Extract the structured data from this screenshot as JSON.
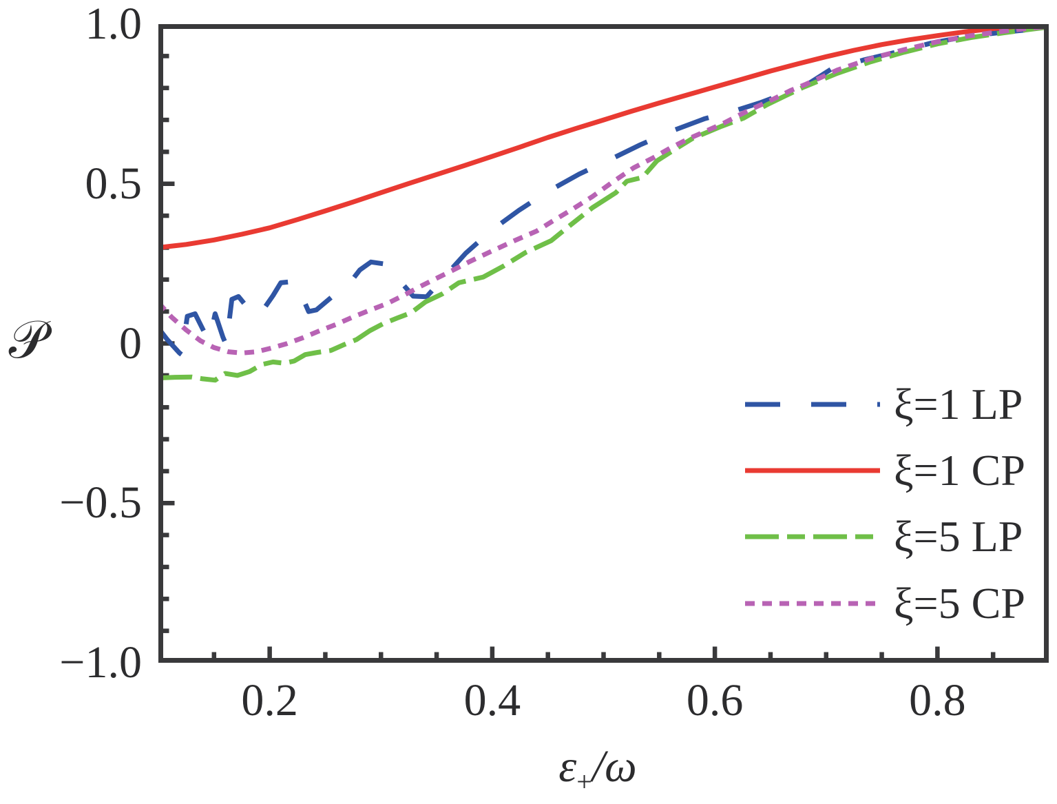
{
  "figure": {
    "background": "#ffffff",
    "axis_color": "#39393b",
    "text_color": "#2c2c2e",
    "ylabel": "𝒫",
    "xlabel": {
      "epsilon": "ε",
      "plus": "+",
      "slash_omega": "/ω"
    }
  },
  "chart_data": {
    "type": "line",
    "title": "",
    "xlabel": "ε₊/ω",
    "ylabel": "𝒫",
    "xlim": [
      0.1,
      0.9
    ],
    "ylim": [
      -1.0,
      1.0
    ],
    "grid": false,
    "legend_position": "lower right",
    "x_major_ticks": [
      0.2,
      0.4,
      0.6,
      0.8
    ],
    "x_minor_step": 0.05,
    "y_major_ticks": [
      -1.0,
      -0.5,
      0,
      0.5,
      1.0
    ],
    "y_minor_step": 0.1,
    "x_tick_labels": [
      {
        "v": 0.2,
        "t": "0.2"
      },
      {
        "v": 0.4,
        "t": "0.4"
      },
      {
        "v": 0.6,
        "t": "0.6"
      },
      {
        "v": 0.8,
        "t": "0.8"
      }
    ],
    "y_tick_labels": [
      {
        "v": 1.0,
        "t": "1.0"
      },
      {
        "v": 0.5,
        "t": "0.5"
      },
      {
        "v": 0,
        "t": "0"
      },
      {
        "v": -0.5,
        "t": "−0.5"
      },
      {
        "v": -1.0,
        "t": "−1.0"
      }
    ],
    "series": [
      {
        "name": "ξ=1 LP",
        "color": "#2F55A4",
        "style": "long-dash",
        "dash": [
          51,
          45
        ],
        "width": 7,
        "points": [
          [
            0.1,
            0.048
          ],
          [
            0.108,
            0.012
          ],
          [
            0.119,
            -0.03
          ],
          [
            0.121,
            -0.035
          ],
          [
            0.126,
            0.085
          ],
          [
            0.133,
            0.093
          ],
          [
            0.142,
            0.03
          ],
          [
            0.146,
            0.012
          ],
          [
            0.151,
            0.093
          ],
          [
            0.158,
            0.02
          ],
          [
            0.161,
            -0.005
          ],
          [
            0.166,
            0.138
          ],
          [
            0.172,
            0.147
          ],
          [
            0.186,
            0.087
          ],
          [
            0.196,
            0.115
          ],
          [
            0.203,
            0.15
          ],
          [
            0.21,
            0.19
          ],
          [
            0.221,
            0.194
          ],
          [
            0.229,
            0.148
          ],
          [
            0.235,
            0.1
          ],
          [
            0.242,
            0.105
          ],
          [
            0.259,
            0.155
          ],
          [
            0.271,
            0.185
          ],
          [
            0.281,
            0.23
          ],
          [
            0.291,
            0.255
          ],
          [
            0.303,
            0.249
          ],
          [
            0.309,
            0.228
          ],
          [
            0.316,
            0.2
          ],
          [
            0.329,
            0.148
          ],
          [
            0.341,
            0.146
          ],
          [
            0.356,
            0.205
          ],
          [
            0.376,
            0.282
          ],
          [
            0.4,
            0.356
          ],
          [
            0.424,
            0.417
          ],
          [
            0.45,
            0.476
          ],
          [
            0.478,
            0.53
          ],
          [
            0.506,
            0.576
          ],
          [
            0.533,
            0.622
          ],
          [
            0.562,
            0.666
          ],
          [
            0.591,
            0.704
          ],
          [
            0.62,
            0.731
          ],
          [
            0.64,
            0.753
          ],
          [
            0.66,
            0.779
          ],
          [
            0.678,
            0.8
          ],
          [
            0.705,
            0.86
          ],
          [
            0.734,
            0.888
          ],
          [
            0.765,
            0.914
          ],
          [
            0.795,
            0.941
          ],
          [
            0.826,
            0.961
          ],
          [
            0.855,
            0.973
          ],
          [
            0.878,
            0.981
          ],
          [
            0.9,
            0.99
          ]
        ]
      },
      {
        "name": "ξ=1 CP",
        "color": "#E93A32",
        "style": "solid",
        "dash": null,
        "width": 7,
        "points": [
          [
            0.1,
            0.3
          ],
          [
            0.125,
            0.31
          ],
          [
            0.15,
            0.324
          ],
          [
            0.175,
            0.342
          ],
          [
            0.2,
            0.362
          ],
          [
            0.225,
            0.388
          ],
          [
            0.25,
            0.415
          ],
          [
            0.275,
            0.443
          ],
          [
            0.3,
            0.472
          ],
          [
            0.325,
            0.501
          ],
          [
            0.35,
            0.529
          ],
          [
            0.375,
            0.557
          ],
          [
            0.4,
            0.586
          ],
          [
            0.425,
            0.615
          ],
          [
            0.45,
            0.645
          ],
          [
            0.475,
            0.673
          ],
          [
            0.5,
            0.7
          ],
          [
            0.525,
            0.727
          ],
          [
            0.55,
            0.753
          ],
          [
            0.575,
            0.778
          ],
          [
            0.6,
            0.803
          ],
          [
            0.625,
            0.828
          ],
          [
            0.65,
            0.853
          ],
          [
            0.675,
            0.876
          ],
          [
            0.7,
            0.898
          ],
          [
            0.725,
            0.918
          ],
          [
            0.75,
            0.936
          ],
          [
            0.775,
            0.951
          ],
          [
            0.8,
            0.964
          ],
          [
            0.825,
            0.976
          ],
          [
            0.85,
            0.986
          ],
          [
            0.875,
            0.993
          ],
          [
            0.9,
            0.998
          ]
        ]
      },
      {
        "name": "ξ=5 LP",
        "color": "#6FBF48",
        "style": "dash-dash",
        "dash": [
          49,
          12,
          26,
          12
        ],
        "width": 7,
        "points": [
          [
            0.1,
            -0.108
          ],
          [
            0.115,
            -0.106
          ],
          [
            0.13,
            -0.105
          ],
          [
            0.14,
            -0.111
          ],
          [
            0.151,
            -0.115
          ],
          [
            0.16,
            -0.094
          ],
          [
            0.171,
            -0.1
          ],
          [
            0.182,
            -0.088
          ],
          [
            0.193,
            -0.066
          ],
          [
            0.203,
            -0.058
          ],
          [
            0.213,
            -0.062
          ],
          [
            0.222,
            -0.055
          ],
          [
            0.232,
            -0.035
          ],
          [
            0.243,
            -0.028
          ],
          [
            0.255,
            -0.022
          ],
          [
            0.266,
            -0.005
          ],
          [
            0.278,
            0.012
          ],
          [
            0.29,
            0.04
          ],
          [
            0.302,
            0.062
          ],
          [
            0.315,
            0.08
          ],
          [
            0.327,
            0.096
          ],
          [
            0.34,
            0.13
          ],
          [
            0.355,
            0.155
          ],
          [
            0.37,
            0.19
          ],
          [
            0.392,
            0.208
          ],
          [
            0.41,
            0.242
          ],
          [
            0.43,
            0.285
          ],
          [
            0.453,
            0.322
          ],
          [
            0.47,
            0.37
          ],
          [
            0.49,
            0.425
          ],
          [
            0.511,
            0.472
          ],
          [
            0.521,
            0.508
          ],
          [
            0.535,
            0.52
          ],
          [
            0.548,
            0.572
          ],
          [
            0.565,
            0.61
          ],
          [
            0.58,
            0.642
          ],
          [
            0.606,
            0.68
          ],
          [
            0.626,
            0.706
          ],
          [
            0.647,
            0.748
          ],
          [
            0.678,
            0.8
          ],
          [
            0.71,
            0.846
          ],
          [
            0.74,
            0.882
          ],
          [
            0.77,
            0.912
          ],
          [
            0.8,
            0.938
          ],
          [
            0.83,
            0.958
          ],
          [
            0.86,
            0.973
          ],
          [
            0.88,
            0.982
          ],
          [
            0.9,
            0.991
          ]
        ]
      },
      {
        "name": "ξ=5 CP",
        "color": "#B863B4",
        "style": "short-dash",
        "dash": [
          14,
          11
        ],
        "width": 7,
        "points": [
          [
            0.1,
            0.128
          ],
          [
            0.112,
            0.082
          ],
          [
            0.125,
            0.042
          ],
          [
            0.138,
            0.008
          ],
          [
            0.15,
            -0.013
          ],
          [
            0.163,
            -0.026
          ],
          [
            0.175,
            -0.03
          ],
          [
            0.188,
            -0.026
          ],
          [
            0.2,
            -0.016
          ],
          [
            0.215,
            -0.001
          ],
          [
            0.23,
            0.018
          ],
          [
            0.245,
            0.04
          ],
          [
            0.26,
            0.06
          ],
          [
            0.275,
            0.083
          ],
          [
            0.29,
            0.104
          ],
          [
            0.305,
            0.124
          ],
          [
            0.32,
            0.15
          ],
          [
            0.335,
            0.178
          ],
          [
            0.35,
            0.204
          ],
          [
            0.365,
            0.23
          ],
          [
            0.38,
            0.257
          ],
          [
            0.4,
            0.29
          ],
          [
            0.42,
            0.322
          ],
          [
            0.44,
            0.352
          ],
          [
            0.455,
            0.385
          ],
          [
            0.472,
            0.42
          ],
          [
            0.49,
            0.46
          ],
          [
            0.508,
            0.505
          ],
          [
            0.527,
            0.55
          ],
          [
            0.545,
            0.582
          ],
          [
            0.56,
            0.612
          ],
          [
            0.577,
            0.642
          ],
          [
            0.592,
            0.665
          ],
          [
            0.608,
            0.69
          ],
          [
            0.623,
            0.717
          ],
          [
            0.638,
            0.742
          ],
          [
            0.653,
            0.766
          ],
          [
            0.668,
            0.792
          ],
          [
            0.682,
            0.812
          ],
          [
            0.71,
            0.856
          ],
          [
            0.74,
            0.892
          ],
          [
            0.77,
            0.92
          ],
          [
            0.8,
            0.945
          ],
          [
            0.83,
            0.964
          ],
          [
            0.86,
            0.978
          ],
          [
            0.88,
            0.986
          ],
          [
            0.9,
            0.993
          ]
        ]
      }
    ]
  },
  "legend": {
    "rows_y_center": [
      587,
      683,
      779,
      876
    ]
  }
}
